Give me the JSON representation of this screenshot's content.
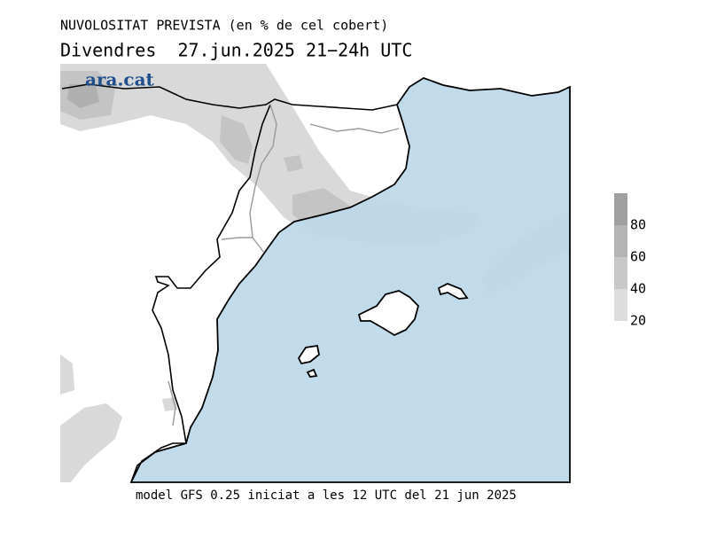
{
  "header": {
    "line1": "NUVOLOSITAT PREVISTA (en % de cel cobert)",
    "line2": "Divendres  27.jun.2025 21−24h UTC"
  },
  "logo": "ara.cat",
  "legend": {
    "ticks": [
      20,
      40,
      60,
      80
    ],
    "colors": [
      "#dcdcdc",
      "#c8c8c8",
      "#b4b4b4",
      "#a0a0a0"
    ]
  },
  "footer": "model GFS 0.25 iniciat a les 12 UTC del 21 jun 2025"
}
